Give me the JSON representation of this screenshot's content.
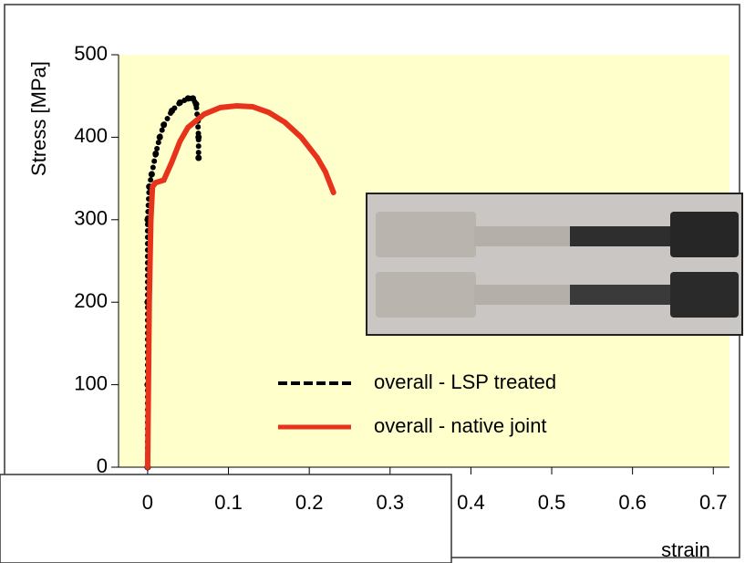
{
  "chart_data": {
    "type": "line",
    "x_label": "strain",
    "y_label": "Stress [MPa]",
    "xlim": [
      -0.036,
      0.72
    ],
    "ylim": [
      0,
      500
    ],
    "xticks": [
      0,
      0.1,
      0.2,
      0.3,
      0.4,
      0.5,
      0.6,
      0.7
    ],
    "yticks": [
      0,
      100,
      200,
      300,
      400,
      500
    ],
    "background": "#ffffcc",
    "series": [
      {
        "name": "overall - LSP treated",
        "color": "#000000",
        "style": "dotted",
        "x": [
          0,
          0,
          0,
          0,
          0.002,
          0.005,
          0.01,
          0.015,
          0.02,
          0.03,
          0.04,
          0.05,
          0.056,
          0.06,
          0.062,
          0.063,
          0.063
        ],
        "values": [
          0,
          100,
          200,
          300,
          340,
          355,
          380,
          400,
          415,
          432,
          442,
          447,
          447,
          440,
          420,
          400,
          375
        ]
      },
      {
        "name": "overall - native joint",
        "color": "#e8331c",
        "style": "solid",
        "x": [
          0,
          0.001,
          0.002,
          0.004,
          0.006,
          0.01,
          0.02,
          0.03,
          0.04,
          0.05,
          0.07,
          0.09,
          0.11,
          0.13,
          0.15,
          0.17,
          0.19,
          0.21,
          0.22,
          0.23
        ],
        "values": [
          0,
          100,
          200,
          300,
          340,
          345,
          348,
          370,
          395,
          412,
          428,
          436,
          438,
          437,
          430,
          418,
          400,
          375,
          358,
          333
        ]
      }
    ]
  }
}
